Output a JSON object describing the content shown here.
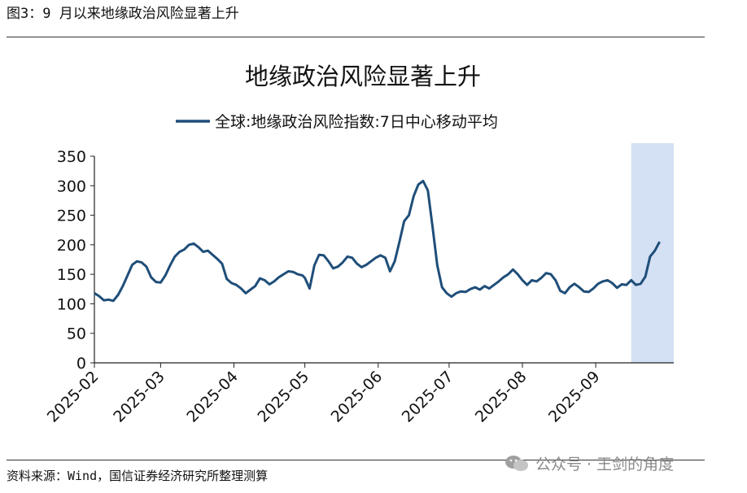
{
  "figure_caption": "图3：9 月以来地缘政治风险显著上升",
  "source_note": "资料来源：Wind，国信证券经济研究所整理测算",
  "watermark": "公众号 · 王剑的角度",
  "chart_data": {
    "type": "line",
    "title": "地缘政治风险显著上升",
    "series": [
      {
        "name": "全球:地缘政治风险指数:7日中心移动平均",
        "color": "#1f4e79",
        "points": [
          [
            "2025-02-01",
            118
          ],
          [
            "2025-02-03",
            113
          ],
          [
            "2025-02-05",
            106
          ],
          [
            "2025-02-07",
            107
          ],
          [
            "2025-02-09",
            105
          ],
          [
            "2025-02-11",
            115
          ],
          [
            "2025-02-13",
            130
          ],
          [
            "2025-02-15",
            148
          ],
          [
            "2025-02-17",
            166
          ],
          [
            "2025-02-19",
            172
          ],
          [
            "2025-02-21",
            170
          ],
          [
            "2025-02-23",
            163
          ],
          [
            "2025-02-25",
            145
          ],
          [
            "2025-02-27",
            137
          ],
          [
            "2025-03-01",
            136
          ],
          [
            "2025-03-03",
            148
          ],
          [
            "2025-03-05",
            165
          ],
          [
            "2025-03-07",
            180
          ],
          [
            "2025-03-09",
            188
          ],
          [
            "2025-03-11",
            192
          ],
          [
            "2025-03-13",
            200
          ],
          [
            "2025-03-15",
            202
          ],
          [
            "2025-03-17",
            196
          ],
          [
            "2025-03-19",
            188
          ],
          [
            "2025-03-21",
            190
          ],
          [
            "2025-03-23",
            183
          ],
          [
            "2025-03-25",
            176
          ],
          [
            "2025-03-27",
            168
          ],
          [
            "2025-03-29",
            142
          ],
          [
            "2025-03-31",
            135
          ],
          [
            "2025-04-02",
            132
          ],
          [
            "2025-04-04",
            126
          ],
          [
            "2025-04-06",
            118
          ],
          [
            "2025-04-08",
            124
          ],
          [
            "2025-04-10",
            130
          ],
          [
            "2025-04-12",
            143
          ],
          [
            "2025-04-14",
            140
          ],
          [
            "2025-04-16",
            133
          ],
          [
            "2025-04-18",
            138
          ],
          [
            "2025-04-20",
            145
          ],
          [
            "2025-04-22",
            150
          ],
          [
            "2025-04-24",
            155
          ],
          [
            "2025-04-26",
            154
          ],
          [
            "2025-04-28",
            150
          ],
          [
            "2025-04-30",
            148
          ],
          [
            "2025-05-01",
            144
          ],
          [
            "2025-05-03",
            126
          ],
          [
            "2025-05-05",
            165
          ],
          [
            "2025-05-07",
            183
          ],
          [
            "2025-05-09",
            182
          ],
          [
            "2025-05-11",
            172
          ],
          [
            "2025-05-13",
            160
          ],
          [
            "2025-05-15",
            163
          ],
          [
            "2025-05-17",
            170
          ],
          [
            "2025-05-19",
            180
          ],
          [
            "2025-05-21",
            178
          ],
          [
            "2025-05-23",
            168
          ],
          [
            "2025-05-25",
            162
          ],
          [
            "2025-05-27",
            166
          ],
          [
            "2025-05-29",
            172
          ],
          [
            "2025-05-31",
            178
          ],
          [
            "2025-06-02",
            182
          ],
          [
            "2025-06-04",
            178
          ],
          [
            "2025-06-06",
            155
          ],
          [
            "2025-06-08",
            172
          ],
          [
            "2025-06-10",
            205
          ],
          [
            "2025-06-12",
            240
          ],
          [
            "2025-06-14",
            250
          ],
          [
            "2025-06-16",
            282
          ],
          [
            "2025-06-18",
            302
          ],
          [
            "2025-06-20",
            308
          ],
          [
            "2025-06-22",
            292
          ],
          [
            "2025-06-24",
            230
          ],
          [
            "2025-06-26",
            165
          ],
          [
            "2025-06-28",
            128
          ],
          [
            "2025-06-30",
            118
          ],
          [
            "2025-07-02",
            112
          ],
          [
            "2025-07-04",
            118
          ],
          [
            "2025-07-06",
            121
          ],
          [
            "2025-07-08",
            120
          ],
          [
            "2025-07-10",
            125
          ],
          [
            "2025-07-12",
            128
          ],
          [
            "2025-07-14",
            124
          ],
          [
            "2025-07-16",
            130
          ],
          [
            "2025-07-18",
            126
          ],
          [
            "2025-07-20",
            132
          ],
          [
            "2025-07-22",
            138
          ],
          [
            "2025-07-24",
            145
          ],
          [
            "2025-07-26",
            150
          ],
          [
            "2025-07-28",
            158
          ],
          [
            "2025-07-30",
            150
          ],
          [
            "2025-08-01",
            140
          ],
          [
            "2025-08-03",
            132
          ],
          [
            "2025-08-05",
            140
          ],
          [
            "2025-08-07",
            138
          ],
          [
            "2025-08-09",
            144
          ],
          [
            "2025-08-11",
            152
          ],
          [
            "2025-08-13",
            150
          ],
          [
            "2025-08-15",
            140
          ],
          [
            "2025-08-17",
            122
          ],
          [
            "2025-08-19",
            118
          ],
          [
            "2025-08-21",
            128
          ],
          [
            "2025-08-23",
            134
          ],
          [
            "2025-08-25",
            128
          ],
          [
            "2025-08-27",
            121
          ],
          [
            "2025-08-29",
            120
          ],
          [
            "2025-08-31",
            126
          ],
          [
            "2025-09-02",
            134
          ],
          [
            "2025-09-04",
            138
          ],
          [
            "2025-09-06",
            140
          ],
          [
            "2025-09-08",
            135
          ],
          [
            "2025-09-10",
            127
          ],
          [
            "2025-09-12",
            133
          ],
          [
            "2025-09-14",
            132
          ],
          [
            "2025-09-16",
            140
          ],
          [
            "2025-09-18",
            132
          ],
          [
            "2025-09-20",
            134
          ],
          [
            "2025-09-22",
            146
          ],
          [
            "2025-09-24",
            180
          ],
          [
            "2025-09-26",
            190
          ],
          [
            "2025-09-28",
            205
          ]
        ]
      }
    ],
    "x_tick_labels": [
      "2025-02",
      "2025-03",
      "2025-04",
      "2025-05",
      "2025-06",
      "2025-07",
      "2025-08",
      "2025-09"
    ],
    "y_tick_labels": [
      "0",
      "50",
      "100",
      "150",
      "200",
      "250",
      "300",
      "350"
    ],
    "ylim": [
      0,
      350
    ],
    "x_range": [
      "2025-02-01",
      "2025-10-04"
    ],
    "highlight_band": {
      "from": "2025-09-16",
      "to": "2025-10-04",
      "color": "#d4e0f4"
    },
    "grid": false,
    "legend": "top-center"
  }
}
